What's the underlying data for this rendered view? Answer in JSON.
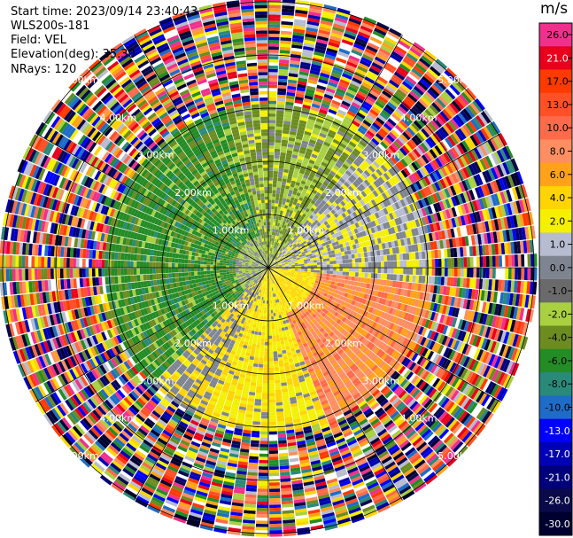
{
  "header": {
    "start_time": "Start time: 2023/09/14 23:40:43",
    "instrument": "WLS200s-181",
    "field": "Field: VEL",
    "elevation": "Elevation(deg): 35.30",
    "nrays": "NRays: 120"
  },
  "colorbar": {
    "unit": "m/s",
    "levels": [
      {
        "label": "26.0",
        "color": "#f0308c"
      },
      {
        "label": "21.0",
        "color": "#e8001c"
      },
      {
        "label": "17.0",
        "color": "#ff3a00"
      },
      {
        "label": "13.0",
        "color": "#ff5028"
      },
      {
        "label": "10.0",
        "color": "#ff6a4a"
      },
      {
        "label": "8.0",
        "color": "#ff8e62"
      },
      {
        "label": "6.0",
        "color": "#ffa21a"
      },
      {
        "label": "4.0",
        "color": "#ffd400"
      },
      {
        "label": "2.0",
        "color": "#f4f000"
      },
      {
        "label": "1.0",
        "color": "#b8bcd0"
      },
      {
        "label": "0.0",
        "color": "#7f8590"
      },
      {
        "label": "-1.0",
        "color": "#6a6a6a"
      },
      {
        "label": "-2.0",
        "color": "#a8d040"
      },
      {
        "label": "-4.0",
        "color": "#6c8c20"
      },
      {
        "label": "-6.0",
        "color": "#248c24"
      },
      {
        "label": "-8.0",
        "color": "#2a8a7a"
      },
      {
        "label": "-10.0",
        "color": "#1e6cc8"
      },
      {
        "label": "-13.0",
        "color": "#0000ff"
      },
      {
        "label": "-17.0",
        "color": "#0000b4"
      },
      {
        "label": "-21.0",
        "color": "#00007a"
      },
      {
        "label": "-26.0",
        "color": "#0a0a4a"
      },
      {
        "label": "-30.0",
        "color": "#000030"
      }
    ]
  },
  "chart_data": {
    "type": "heatmap",
    "field": "VEL",
    "nrays": 120,
    "elevation_deg": 35.3,
    "range_ring_labels": [
      "1.00km",
      "2.00km",
      "3.00km",
      "4.00km",
      "5.00km"
    ],
    "range_rings_km": [
      1,
      2,
      3,
      4,
      5
    ],
    "zones": [
      {
        "name": "inner",
        "range_km": [
          0,
          3.0
        ],
        "description_colors": [
          "#248c24",
          "#6c8c20",
          "#a8d040",
          "#7f8590",
          "#f4f000",
          "#ffd400",
          "#ff8e62"
        ]
      },
      {
        "name": "outer-noise",
        "range_km": [
          3.0,
          5.0
        ]
      }
    ]
  }
}
